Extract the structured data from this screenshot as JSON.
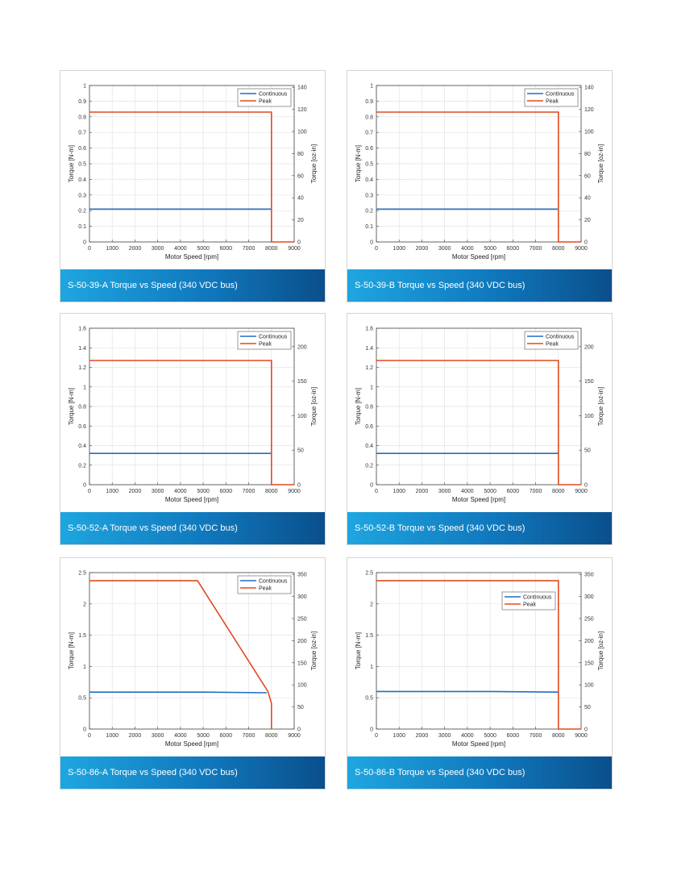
{
  "colors": {
    "continuous": "#1f6fc4",
    "peak": "#e04a1f",
    "caption_start": "#1ea6e0",
    "caption_end": "#0a4f8c"
  },
  "chart_data": [
    {
      "type": "line",
      "caption": "S-50-39-A Torque vs Speed (340 VDC bus)",
      "xlabel": "Motor Speed [rpm]",
      "ylabel": "Torque [N-m]",
      "y2label": "Torque [oz-in]",
      "xlim": [
        0,
        9000
      ],
      "ylim": [
        0,
        1
      ],
      "y2lim": [
        0,
        141.6
      ],
      "xticks": [
        0,
        1000,
        2000,
        3000,
        4000,
        5000,
        6000,
        7000,
        8000,
        9000
      ],
      "yticks": [
        0,
        0.1,
        0.2,
        0.3,
        0.4,
        0.5,
        0.6,
        0.7,
        0.8,
        0.9,
        1
      ],
      "y2ticks": [
        0,
        20,
        40,
        60,
        80,
        100,
        120,
        140
      ],
      "grid": true,
      "legend": "top-right",
      "series": [
        {
          "name": "Continuous",
          "x": [
            0,
            8000
          ],
          "y": [
            0.21,
            0.21
          ]
        },
        {
          "name": "Peak",
          "x": [
            0,
            8000,
            8000,
            9000
          ],
          "y": [
            0.83,
            0.83,
            0,
            0
          ]
        }
      ]
    },
    {
      "type": "line",
      "caption": "S-50-39-B Torque vs Speed (340 VDC bus)",
      "xlabel": "Motor Speed [rpm]",
      "ylabel": "Torque [N-m]",
      "y2label": "Torque [oz-in]",
      "xlim": [
        0,
        9000
      ],
      "ylim": [
        0,
        1
      ],
      "y2lim": [
        0,
        141.6
      ],
      "xticks": [
        0,
        1000,
        2000,
        3000,
        4000,
        5000,
        6000,
        7000,
        8000,
        9000
      ],
      "yticks": [
        0,
        0.1,
        0.2,
        0.3,
        0.4,
        0.5,
        0.6,
        0.7,
        0.8,
        0.9,
        1
      ],
      "y2ticks": [
        0,
        20,
        40,
        60,
        80,
        100,
        120,
        140
      ],
      "grid": true,
      "legend": "top-right",
      "series": [
        {
          "name": "Continuous",
          "x": [
            0,
            8000
          ],
          "y": [
            0.21,
            0.21
          ]
        },
        {
          "name": "Peak",
          "x": [
            0,
            8000,
            8000,
            9000
          ],
          "y": [
            0.83,
            0.83,
            0,
            0
          ]
        }
      ]
    },
    {
      "type": "line",
      "caption": "S-50-52-A Torque vs Speed (340 VDC bus)",
      "xlabel": "Motor Speed [rpm]",
      "ylabel": "Torque [N-m]",
      "y2label": "Torque [oz-in]",
      "xlim": [
        0,
        9000
      ],
      "ylim": [
        0,
        1.6
      ],
      "y2lim": [
        0,
        226.6
      ],
      "xticks": [
        0,
        1000,
        2000,
        3000,
        4000,
        5000,
        6000,
        7000,
        8000,
        9000
      ],
      "yticks": [
        0,
        0.2,
        0.4,
        0.6,
        0.8,
        1,
        1.2,
        1.4,
        1.6
      ],
      "y2ticks": [
        0,
        50,
        100,
        150,
        200
      ],
      "grid": true,
      "legend": "top-right",
      "series": [
        {
          "name": "Continuous",
          "x": [
            0,
            8000
          ],
          "y": [
            0.32,
            0.32
          ]
        },
        {
          "name": "Peak",
          "x": [
            0,
            8000,
            8000,
            9000
          ],
          "y": [
            1.27,
            1.27,
            0,
            0
          ]
        }
      ]
    },
    {
      "type": "line",
      "caption": "S-50-52-B Torque vs Speed (340 VDC bus)",
      "xlabel": "Motor Speed [rpm]",
      "ylabel": "Torque [N-m]",
      "y2label": "Torque [oz-in]",
      "xlim": [
        0,
        9000
      ],
      "ylim": [
        0,
        1.6
      ],
      "y2lim": [
        0,
        226.6
      ],
      "xticks": [
        0,
        1000,
        2000,
        3000,
        4000,
        5000,
        6000,
        7000,
        8000,
        9000
      ],
      "yticks": [
        0,
        0.2,
        0.4,
        0.6,
        0.8,
        1,
        1.2,
        1.4,
        1.6
      ],
      "y2ticks": [
        0,
        50,
        100,
        150,
        200
      ],
      "grid": true,
      "legend": "top-right",
      "series": [
        {
          "name": "Continuous",
          "x": [
            0,
            8000
          ],
          "y": [
            0.32,
            0.32
          ]
        },
        {
          "name": "Peak",
          "x": [
            0,
            8000,
            8000,
            9000
          ],
          "y": [
            1.27,
            1.27,
            0,
            0
          ]
        }
      ]
    },
    {
      "type": "line",
      "caption": "S-50-86-A Torque vs Speed (340 VDC bus)",
      "xlabel": "Motor Speed [rpm]",
      "ylabel": "Torque [N-m]",
      "y2label": "Torque [oz-in]",
      "xlim": [
        0,
        9000
      ],
      "ylim": [
        0,
        2.5
      ],
      "y2lim": [
        0,
        354
      ],
      "xticks": [
        0,
        1000,
        2000,
        3000,
        4000,
        5000,
        6000,
        7000,
        8000,
        9000
      ],
      "yticks": [
        0,
        0.5,
        1,
        1.5,
        2,
        2.5
      ],
      "y2ticks": [
        0,
        50,
        100,
        150,
        200,
        250,
        300,
        350
      ],
      "grid": true,
      "legend": "top-right",
      "series": [
        {
          "name": "Continuous",
          "x": [
            0,
            5000,
            7800
          ],
          "y": [
            0.59,
            0.59,
            0.58
          ]
        },
        {
          "name": "Peak",
          "x": [
            0,
            4750,
            7850,
            8000,
            8000
          ],
          "y": [
            2.37,
            2.37,
            0.6,
            0.41,
            0
          ]
        }
      ]
    },
    {
      "type": "line",
      "caption": "S-50-86-B Torque vs Speed (340 VDC bus)",
      "xlabel": "Motor Speed [rpm]",
      "ylabel": "Torque [N-m]",
      "y2label": "Torque [oz-in]",
      "xlim": [
        0,
        9000
      ],
      "ylim": [
        0,
        2.5
      ],
      "y2lim": [
        0,
        354
      ],
      "xticks": [
        0,
        1000,
        2000,
        3000,
        4000,
        5000,
        6000,
        7000,
        8000,
        9000
      ],
      "yticks": [
        0,
        0.5,
        1,
        1.5,
        2,
        2.5
      ],
      "y2ticks": [
        0,
        50,
        100,
        150,
        200,
        250,
        300,
        350
      ],
      "grid": true,
      "legend": "center-right",
      "series": [
        {
          "name": "Continuous",
          "x": [
            0,
            5000,
            8000
          ],
          "y": [
            0.6,
            0.6,
            0.59
          ]
        },
        {
          "name": "Peak",
          "x": [
            0,
            8000,
            8000,
            9000
          ],
          "y": [
            2.37,
            2.37,
            0,
            0
          ]
        }
      ]
    }
  ]
}
